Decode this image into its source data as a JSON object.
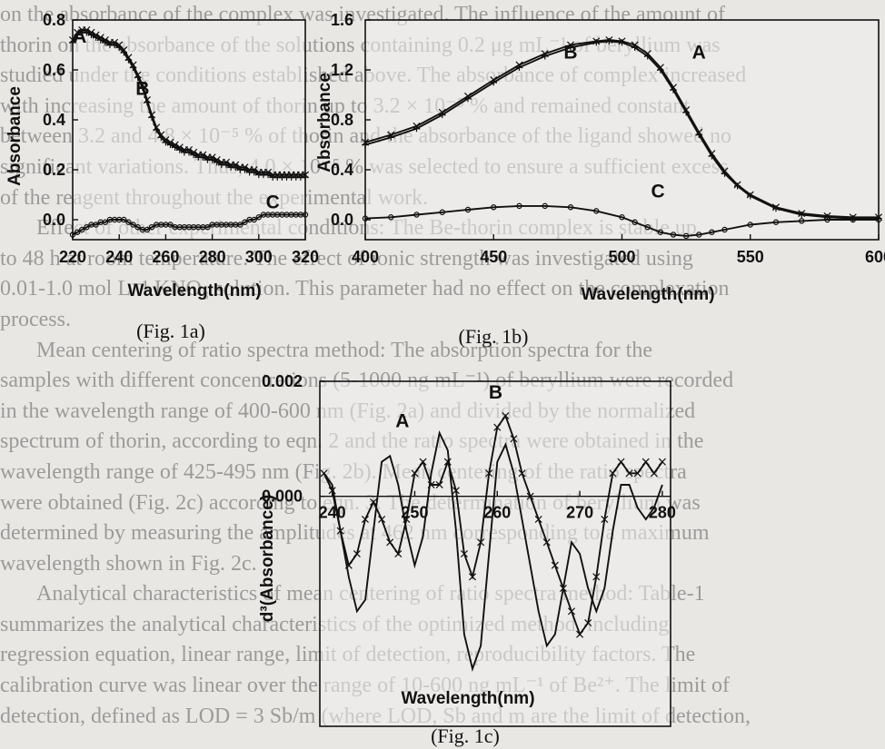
{
  "background_text": [
    {
      "text": "on the absorbance of the complex was investigated. The influence of the amount of",
      "style": ""
    },
    {
      "text": "thorin on the absorbance of the solutions containing 0.2 μg mL⁻¹ of beryllium was",
      "style": ""
    },
    {
      "text": "studied under the conditions established above. The absorbance of complex increased",
      "style": ""
    },
    {
      "text": "with increasing the amount of thorin up to 3.2 × 10⁻⁵ % and remained constant",
      "style": ""
    },
    {
      "text": "between 3.2 and 4.8 × 10⁻⁵ % of thorin and the absorbance of the ligand showed no",
      "style": ""
    },
    {
      "text": "significant variations. Thus, 4.0 × 10⁻⁵ % was selected to ensure a sufficient excess",
      "style": ""
    },
    {
      "text": "of the reagent throughout the experimental work.",
      "style": ""
    },
    {
      "text": "Effect of other experimental conditions: The Be-thorin complex is stable up",
      "style": "indent"
    },
    {
      "text": "to 48 h at room temperature. The effect of ionic strength was investigated using",
      "style": ""
    },
    {
      "text": "0.01-1.0 mol L⁻¹ KNO₃ solution. This parameter had no effect on the complexation",
      "style": ""
    },
    {
      "text": "process.",
      "style": ""
    },
    {
      "text": "Mean centering of ratio spectra method: The absorption spectra for the",
      "style": "indent"
    },
    {
      "text": "samples with different concentrations (5-1000 ng mL⁻¹) of beryllium were recorded",
      "style": ""
    },
    {
      "text": "in the wavelength range of 400-600 nm (Fig. 2a) and divided by the normalized",
      "style": ""
    },
    {
      "text": "spectrum of thorin, according to eqn. 2 and the ratio spectra were obtained in the",
      "style": ""
    },
    {
      "text": "wavelength range of 425-495 nm (Fig. 2b). Mean centering of the ratio spectra",
      "style": ""
    },
    {
      "text": "were obtained (Fig. 2c) according to eqn. 3. The determination of beryllium was",
      "style": ""
    },
    {
      "text": "determined by measuring the amplitudes at 462 nm corresponding to a maximum",
      "style": ""
    },
    {
      "text": "wavelength shown in Fig. 2c.",
      "style": ""
    },
    {
      "text": "Analytical characteristics of mean centering of ratio spectra method: Table-1",
      "style": "indent"
    },
    {
      "text": "summarizes the analytical characteristics of the optimized method, including",
      "style": ""
    },
    {
      "text": "regression equation, linear range, limit of detection, reproducibility factors. The",
      "style": ""
    },
    {
      "text": "calibration curve was linear over the range of 10-600 ng mL⁻¹ of Be²⁺. The limit of",
      "style": ""
    },
    {
      "text": "detection, defined as LOD = 3 Sb/m (where LOD, Sb and m are the limit of detection,",
      "style": ""
    }
  ],
  "chart_data": [
    {
      "id": "fig-1a",
      "type": "line",
      "caption": "(Fig. 1a)",
      "xlabel": "Wavelength(nm)",
      "ylabel": "Absorbance",
      "xlim": [
        220,
        320
      ],
      "ylim": [
        -0.08,
        0.8
      ],
      "xticks": [
        220,
        240,
        260,
        280,
        300,
        320
      ],
      "xtick_labels": [
        "220",
        "240",
        "260",
        "280",
        "300",
        "320"
      ],
      "yticks": [
        0.0,
        0.2,
        0.4,
        0.6,
        0.8
      ],
      "ytick_labels": [
        "0.0",
        "0.2",
        "0.4",
        "0.6",
        "0.8"
      ],
      "series": [
        {
          "name": "A",
          "marker": "x",
          "x": [
            220,
            222,
            224,
            226,
            228,
            230,
            232,
            234,
            236,
            238,
            240,
            242,
            244,
            246,
            248,
            250,
            252,
            254,
            256,
            258,
            260,
            262,
            264,
            266,
            268,
            270,
            272,
            274,
            276,
            278,
            280,
            282,
            284,
            286,
            288,
            290,
            292,
            294,
            296,
            298,
            300,
            302,
            304,
            306,
            308,
            310,
            312,
            314,
            316,
            318,
            320
          ],
          "y": [
            0.72,
            0.75,
            0.76,
            0.76,
            0.75,
            0.74,
            0.73,
            0.72,
            0.71,
            0.71,
            0.7,
            0.68,
            0.65,
            0.62,
            0.58,
            0.54,
            0.48,
            0.42,
            0.37,
            0.34,
            0.32,
            0.31,
            0.3,
            0.29,
            0.28,
            0.28,
            0.27,
            0.26,
            0.26,
            0.25,
            0.25,
            0.24,
            0.23,
            0.23,
            0.22,
            0.22,
            0.21,
            0.21,
            0.2,
            0.2,
            0.19,
            0.19,
            0.19,
            0.18,
            0.18,
            0.18,
            0.18,
            0.18,
            0.18,
            0.18,
            0.18
          ]
        },
        {
          "name": "B",
          "marker": "+",
          "x": [
            220,
            222,
            224,
            226,
            228,
            230,
            232,
            234,
            236,
            238,
            240,
            242,
            244,
            246,
            248,
            250,
            252,
            254,
            256,
            258,
            260,
            262,
            264,
            266,
            268,
            270,
            272,
            274,
            276,
            278,
            280,
            282,
            284,
            286,
            288,
            290,
            292,
            294,
            296,
            298,
            300,
            302,
            304,
            306,
            308,
            310,
            312,
            314,
            316,
            318,
            320
          ],
          "y": [
            0.71,
            0.74,
            0.75,
            0.75,
            0.74,
            0.73,
            0.72,
            0.71,
            0.7,
            0.7,
            0.69,
            0.67,
            0.64,
            0.61,
            0.57,
            0.53,
            0.47,
            0.41,
            0.36,
            0.33,
            0.31,
            0.3,
            0.29,
            0.28,
            0.27,
            0.27,
            0.26,
            0.25,
            0.25,
            0.24,
            0.24,
            0.23,
            0.22,
            0.22,
            0.21,
            0.21,
            0.2,
            0.2,
            0.19,
            0.19,
            0.18,
            0.18,
            0.18,
            0.17,
            0.17,
            0.17,
            0.17,
            0.17,
            0.17,
            0.17,
            0.17
          ]
        },
        {
          "name": "C",
          "marker": "o",
          "x": [
            220,
            222,
            224,
            226,
            228,
            230,
            232,
            234,
            236,
            238,
            240,
            242,
            244,
            246,
            248,
            250,
            252,
            254,
            256,
            258,
            260,
            262,
            264,
            266,
            268,
            270,
            272,
            274,
            276,
            278,
            280,
            282,
            284,
            286,
            288,
            290,
            292,
            294,
            296,
            298,
            300,
            302,
            304,
            306,
            308,
            310,
            312,
            314,
            316,
            318,
            320
          ],
          "y": [
            -0.06,
            -0.05,
            -0.04,
            -0.03,
            -0.02,
            -0.02,
            -0.01,
            -0.01,
            0.0,
            0.0,
            0.0,
            0.0,
            -0.01,
            -0.02,
            -0.03,
            -0.04,
            -0.04,
            -0.03,
            -0.02,
            -0.02,
            -0.02,
            -0.02,
            -0.03,
            -0.03,
            -0.03,
            -0.03,
            -0.03,
            -0.03,
            -0.03,
            -0.03,
            -0.02,
            -0.02,
            -0.02,
            -0.02,
            -0.02,
            -0.02,
            -0.02,
            -0.01,
            0.0,
            0.0,
            0.01,
            0.02,
            0.02,
            0.02,
            0.02,
            0.02,
            0.02,
            0.02,
            0.02,
            0.02,
            0.02
          ]
        }
      ],
      "series_label_points": [
        {
          "name": "A",
          "x": 223,
          "y": 0.71
        },
        {
          "name": "B",
          "x": 250,
          "y": 0.5
        },
        {
          "name": "C",
          "x": 306,
          "y": 0.045
        }
      ]
    },
    {
      "id": "fig-1b",
      "type": "line",
      "caption": "(Fig. 1b)",
      "xlabel": "Wavelength(nm)",
      "ylabel": "Absorbance",
      "xlim": [
        400,
        600
      ],
      "ylim": [
        -0.16,
        1.6
      ],
      "xticks": [
        400,
        450,
        500,
        550,
        600
      ],
      "xtick_labels": [
        "400",
        "450",
        "500",
        "550",
        "600"
      ],
      "yticks": [
        0.0,
        0.4,
        0.8,
        1.2,
        1.6
      ],
      "ytick_labels": [
        "0.0",
        "0.4",
        "0.8",
        "1.2",
        "1.6"
      ],
      "series": [
        {
          "name": "A",
          "marker": "x",
          "x": [
            400,
            410,
            420,
            430,
            440,
            450,
            460,
            470,
            480,
            490,
            495,
            500,
            505,
            510,
            515,
            520,
            525,
            530,
            535,
            540,
            545,
            550,
            560,
            570,
            580,
            590,
            600
          ],
          "y": [
            0.62,
            0.68,
            0.75,
            0.86,
            0.99,
            1.12,
            1.24,
            1.33,
            1.4,
            1.43,
            1.44,
            1.43,
            1.4,
            1.33,
            1.22,
            1.06,
            0.88,
            0.7,
            0.53,
            0.39,
            0.28,
            0.2,
            0.1,
            0.05,
            0.03,
            0.02,
            0.02
          ]
        },
        {
          "name": "B",
          "marker": "+",
          "x": [
            400,
            410,
            420,
            430,
            440,
            450,
            460,
            470,
            480,
            490,
            495,
            500,
            505,
            510,
            515,
            520,
            525,
            530,
            535,
            540,
            545,
            550,
            560,
            570,
            580,
            590,
            600
          ],
          "y": [
            0.6,
            0.66,
            0.73,
            0.84,
            0.97,
            1.1,
            1.22,
            1.31,
            1.38,
            1.42,
            1.43,
            1.42,
            1.38,
            1.31,
            1.2,
            1.04,
            0.86,
            0.68,
            0.51,
            0.37,
            0.27,
            0.19,
            0.09,
            0.04,
            0.02,
            0.01,
            0.01
          ]
        },
        {
          "name": "C",
          "marker": "o",
          "x": [
            400,
            410,
            420,
            430,
            440,
            450,
            460,
            470,
            480,
            490,
            500,
            505,
            510,
            515,
            520,
            525,
            530,
            535,
            540,
            550,
            560,
            570,
            580,
            590,
            600
          ],
          "y": [
            0.01,
            0.02,
            0.04,
            0.06,
            0.08,
            0.1,
            0.11,
            0.11,
            0.1,
            0.07,
            0.02,
            -0.02,
            -0.06,
            -0.1,
            -0.12,
            -0.13,
            -0.12,
            -0.1,
            -0.08,
            -0.04,
            -0.02,
            -0.01,
            0.0,
            0.0,
            0.0
          ]
        }
      ],
      "series_label_points": [
        {
          "name": "B",
          "x": 480,
          "y": 1.29
        },
        {
          "name": "A",
          "x": 530,
          "y": 1.29
        },
        {
          "name": "C",
          "x": 514,
          "y": 0.18
        }
      ]
    },
    {
      "id": "fig-1c",
      "type": "line",
      "caption": "(Fig. 1c)",
      "xlabel": "Wavelength(nm)",
      "ylabel": "d³(Absorbance)",
      "xlim": [
        238.5,
        281
      ],
      "ylim": [
        -0.004,
        0.002
      ],
      "xticks": [
        240,
        250,
        260,
        270,
        280
      ],
      "xtick_labels": [
        "240",
        "250",
        "260",
        "270",
        "280"
      ],
      "xaxis_at_y": 0.0,
      "yticks": [
        0.002,
        0.0
      ],
      "ytick_labels": [
        "0.002",
        "0.000"
      ],
      "series": [
        {
          "name": "A",
          "marker": "none",
          "x": [
            239,
            240,
            241,
            242,
            243,
            244,
            245,
            246,
            247,
            248,
            249,
            250,
            251,
            252,
            253,
            254,
            255,
            256,
            257,
            258,
            259,
            260,
            261,
            262,
            263,
            264,
            265,
            266,
            267,
            268,
            269,
            270,
            271,
            272,
            273,
            274,
            275,
            276,
            277,
            278,
            279,
            280
          ],
          "y": [
            0.0004,
            0.0002,
            -0.0006,
            -0.0014,
            -0.002,
            -0.0018,
            -0.0006,
            0.0006,
            0.0007,
            0.0002,
            -0.0006,
            -0.0012,
            -0.0007,
            0.0004,
            0.0011,
            0.0008,
            -0.0006,
            -0.0024,
            -0.003,
            -0.0026,
            -0.001,
            0.0006,
            0.0009,
            0.0004,
            -0.0004,
            -0.0012,
            -0.002,
            -0.0026,
            -0.0024,
            -0.0016,
            -0.0008,
            -0.001,
            -0.0016,
            -0.002,
            -0.0016,
            -0.0006,
            0.0002,
            0.0002,
            -0.0002,
            -0.0004,
            -0.0002,
            0.0002
          ]
        },
        {
          "name": "B",
          "marker": "x",
          "x": [
            239,
            240,
            241,
            242,
            243,
            244,
            245,
            246,
            247,
            248,
            249,
            250,
            251,
            252,
            253,
            254,
            255,
            256,
            257,
            258,
            259,
            260,
            261,
            262,
            263,
            264,
            265,
            266,
            267,
            268,
            269,
            270,
            271,
            272,
            273,
            274,
            275,
            276,
            277,
            278,
            279,
            280
          ],
          "y": [
            0.0004,
            0.0001,
            -0.0006,
            -0.0012,
            -0.001,
            -0.0004,
            -0.0001,
            -0.0004,
            -0.0008,
            -0.001,
            -0.0004,
            0.0004,
            0.0006,
            0.0002,
            0.0002,
            0.0006,
            0.0001,
            -0.001,
            -0.0014,
            -0.0008,
            0.0004,
            0.0012,
            0.0014,
            0.001,
            0.0004,
            0.0,
            -0.0004,
            -0.0008,
            -0.0012,
            -0.0016,
            -0.002,
            -0.0024,
            -0.0022,
            -0.0014,
            -0.0004,
            0.0004,
            0.0006,
            0.0004,
            0.0004,
            0.0006,
            0.0004,
            0.0006
          ]
        }
      ],
      "series_label_points": [
        {
          "name": "A",
          "x": 248.5,
          "y": 0.0012
        },
        {
          "name": "B",
          "x": 259.8,
          "y": 0.0017
        }
      ]
    }
  ]
}
